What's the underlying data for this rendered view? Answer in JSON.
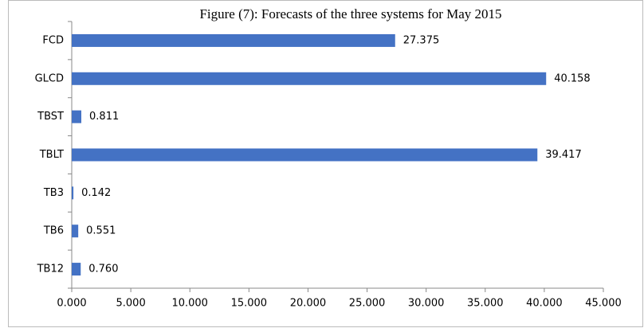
{
  "chart_data": {
    "type": "bar",
    "orientation": "horizontal",
    "title": "Figure  (7): Forecasts of  the three systems for May 2015",
    "categories": [
      "FCD",
      "GLCD",
      "TBST",
      "TBLT",
      "TB3",
      "TB6",
      "TB12"
    ],
    "values": [
      27.375,
      40.158,
      0.811,
      39.417,
      0.142,
      0.551,
      0.76
    ],
    "value_labels": [
      "27.375",
      "40.158",
      "0.811",
      "39.417",
      "0.142",
      "0.551",
      "0.760"
    ],
    "color": "#4472c4",
    "xlim": [
      0,
      45
    ],
    "xticks": [
      {
        "value": 0,
        "label": "0.000"
      },
      {
        "value": 5,
        "label": "5.000"
      },
      {
        "value": 10,
        "label": "10.000"
      },
      {
        "value": 15,
        "label": "15.000"
      },
      {
        "value": 20,
        "label": "20.000"
      },
      {
        "value": 25,
        "label": "25.000"
      },
      {
        "value": 30,
        "label": "30.000"
      },
      {
        "value": 35,
        "label": "35.000"
      },
      {
        "value": 40,
        "label": "40.000"
      },
      {
        "value": 45,
        "label": "45.000"
      }
    ],
    "grid": false
  }
}
